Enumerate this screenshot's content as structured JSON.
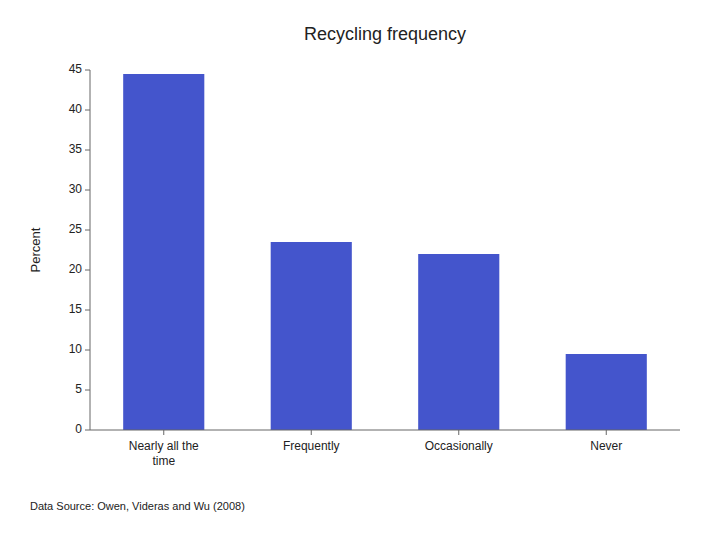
{
  "chart_data": {
    "type": "bar",
    "title": "Recycling frequency",
    "categories": [
      "Nearly all the\ntime",
      "Frequently",
      "Occasionally",
      "Never"
    ],
    "values": [
      44.5,
      23.5,
      22.0,
      9.5
    ],
    "color": "#4455CC",
    "ylabel": "Percent",
    "ylim": [
      0,
      45
    ],
    "yticks": [
      0,
      5,
      10,
      15,
      20,
      25,
      30,
      35,
      40,
      45
    ],
    "grid": false,
    "annotations": [
      "Data Source: Owen, Videras and Wu (2008)"
    ]
  }
}
